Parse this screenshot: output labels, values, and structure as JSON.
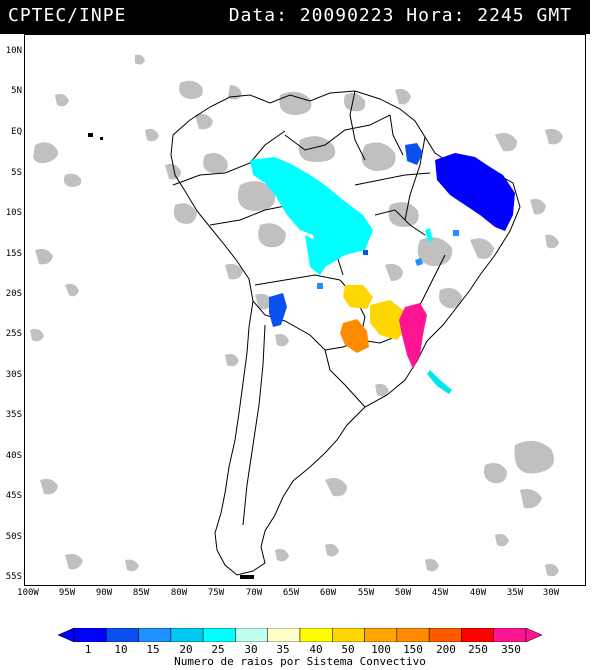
{
  "header": {
    "source": "CPTEC/INPE",
    "datetime": "Data: 20090223 Hora: 2245 GMT"
  },
  "axes": {
    "lat_labels": [
      "10N",
      "5N",
      "EQ",
      "5S",
      "10S",
      "15S",
      "20S",
      "25S",
      "30S",
      "35S",
      "40S",
      "45S",
      "50S",
      "55S"
    ],
    "lon_labels": [
      "100W",
      "95W",
      "90W",
      "85W",
      "80W",
      "75W",
      "70W",
      "65W",
      "60W",
      "55W",
      "50W",
      "45W",
      "40W",
      "35W",
      "30W"
    ]
  },
  "legend": {
    "caption": "Numero de raios por Sistema Convectivo",
    "ticks": [
      "1",
      "10",
      "15",
      "20",
      "25",
      "30",
      "35",
      "40",
      "50",
      "100",
      "150",
      "200",
      "250",
      "350"
    ],
    "colors": [
      "#0000ff",
      "#0a50f0",
      "#1e90ff",
      "#00c8f0",
      "#00ffff",
      "#bfffef",
      "#ffffc8",
      "#ffff00",
      "#ffd700",
      "#ffa500",
      "#ff8c00",
      "#ff5a00",
      "#ff0000",
      "#ff1493"
    ]
  },
  "colors": {
    "cloud": "#c0c0c0",
    "coast": "#000000"
  }
}
